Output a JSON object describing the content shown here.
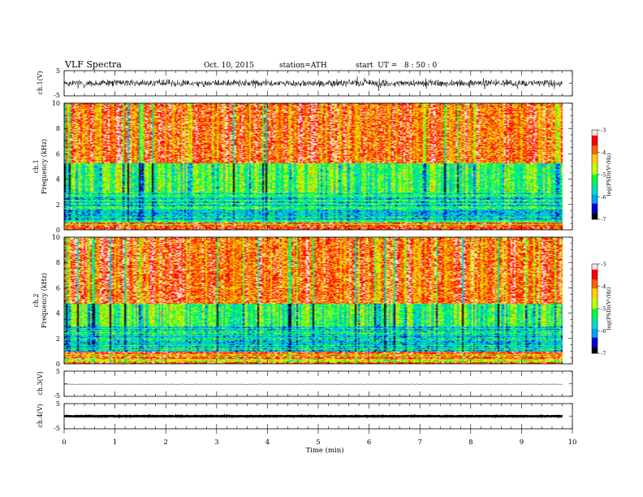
{
  "header": {
    "title": "VLF Spectra",
    "date": "Oct. 10, 2015",
    "station": "station=ATH",
    "start": "start  UT =   8 : 50 : 0"
  },
  "chart_data": [
    {
      "type": "line",
      "panel": "ch1-waveform",
      "ylabel": "ch.1(V)",
      "ylim": [
        -5,
        5
      ],
      "yticks": [
        "5",
        "-5"
      ],
      "x": [
        0,
        0.5,
        1,
        1.5,
        2,
        2.5,
        3,
        3.5,
        4,
        4.5,
        5,
        5.5,
        6,
        6.5,
        7,
        7.5,
        8,
        8.5,
        9,
        9.5,
        9.8
      ],
      "y": [
        0.1,
        -0.2,
        0.3,
        0.0,
        0.2,
        -0.1,
        0.1,
        0.0,
        0.2,
        -0.2,
        0.0,
        0.1,
        0.2,
        -0.1,
        0.0,
        0.1,
        -0.1,
        0.2,
        0.0,
        0.1,
        -0.2
      ],
      "noise_amplitude": 1.6
    },
    {
      "type": "heatmap",
      "panel": "ch1-spectrogram",
      "ylabel_channel": "ch.1",
      "ylabel": "Frequency (kHz)",
      "ylim": [
        0,
        10
      ],
      "yticks": [
        "0",
        "2",
        "4",
        "6",
        "8",
        "10"
      ],
      "colorbar_label": "log(PSD)(V²/Hz)",
      "colorbar_ticks": [
        "-3",
        "-4",
        "-5",
        "-6",
        "-7"
      ],
      "clim": [
        -7,
        -3
      ],
      "colors": [
        "#000000",
        "#0000cc",
        "#00a0ff",
        "#00e0c0",
        "#00ff40",
        "#c0ff00",
        "#ffd000",
        "#ff6000",
        "#ff0000",
        "#ffe0e0"
      ],
      "band_floor_khz": [
        0,
        5.0
      ],
      "band_structure": "high band red/orange above 5 kHz, green 3-5 kHz, blue/cyan 0.6-3 kHz, red lines below 0.6 kHz"
    },
    {
      "type": "heatmap",
      "panel": "ch2-spectrogram",
      "ylabel_channel": "ch.2",
      "ylabel": "Frequency (kHz)",
      "ylim": [
        0,
        10
      ],
      "yticks": [
        "0",
        "2",
        "4",
        "6",
        "8",
        "10"
      ],
      "colorbar_label": "log(PSD)(V²/Hz)",
      "colorbar_ticks": [
        "-3",
        "-4",
        "-5",
        "-6",
        "-7"
      ],
      "clim": [
        -7,
        -3
      ],
      "band_floor_khz": [
        0,
        4.5
      ],
      "band_structure": "high band red/orange above 4.5 kHz, green 3-4.5 kHz, cyan 1-3 kHz, red lines below 1 kHz"
    },
    {
      "type": "line",
      "panel": "ch3-waveform",
      "ylabel": "ch.3(V)",
      "ylim": [
        -5,
        5
      ],
      "yticks": [
        "5",
        "-5"
      ],
      "x": [
        0,
        9.8
      ],
      "y": [
        -0.2,
        -0.2
      ],
      "noise_amplitude": 0.1
    },
    {
      "type": "line",
      "panel": "ch4-waveform",
      "ylabel": "ch.4(V)",
      "ylim": [
        -5,
        5
      ],
      "yticks": [
        "5",
        "-5"
      ],
      "x": [
        0,
        9.8
      ],
      "y": [
        0.0,
        0.0
      ],
      "noise_amplitude": 0.15
    }
  ],
  "xaxis": {
    "label": "Time (min)",
    "ticks": [
      "0",
      "1",
      "2",
      "3",
      "4",
      "5",
      "6",
      "7",
      "8",
      "9",
      "10"
    ],
    "xlim": [
      0,
      10
    ],
    "data_end_min": 9.8
  }
}
